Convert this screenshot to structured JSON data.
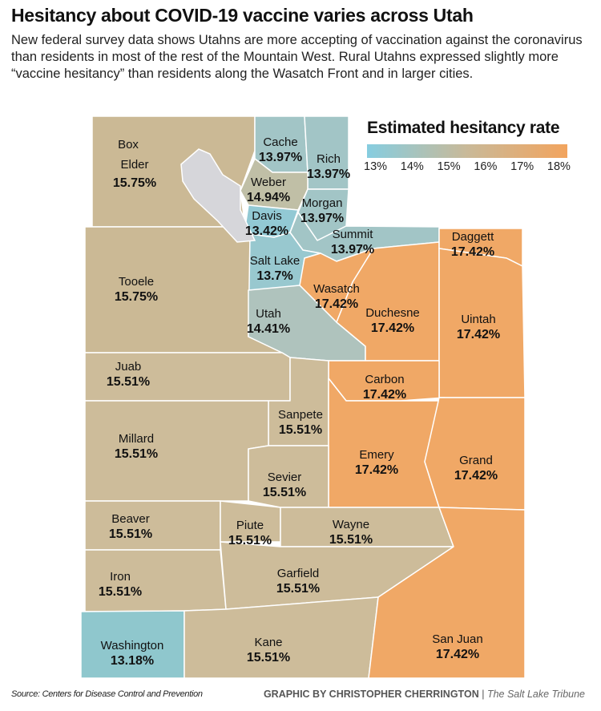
{
  "title": "Hesitancy about COVID-19 vaccine varies across Utah",
  "subtitle": "New federal survey data shows Utahns are more accepting of vaccination against the coronavirus than residents in most of the rest of the Mountain West. Rural Utahns expressed slightly more “vaccine hesitancy” than residents along the Wasatch Front and in larger cities.",
  "legend": {
    "title": "Estimated hesitancy rate",
    "ticks": [
      "13%",
      "14%",
      "15%",
      "16%",
      "17%",
      "18%"
    ],
    "range": [
      13,
      18
    ],
    "color_low": "#86cde0",
    "color_mid": "#c9b998",
    "color_high": "#f2a45e"
  },
  "colors": {
    "lake": "#d6d6da",
    "outline": "#ffffff"
  },
  "counties": [
    {
      "name": "Box Elder",
      "rate": "15.75%",
      "value": 15.75,
      "color": "#cbb995"
    },
    {
      "name": "Cache",
      "rate": "13.97%",
      "value": 13.97,
      "color": "#a2c5c6"
    },
    {
      "name": "Rich",
      "rate": "13.97%",
      "value": 13.97,
      "color": "#a2c5c6"
    },
    {
      "name": "Weber",
      "rate": "14.94%",
      "value": 14.94,
      "color": "#c0bfa6"
    },
    {
      "name": "Morgan",
      "rate": "13.97%",
      "value": 13.97,
      "color": "#a2c5c6"
    },
    {
      "name": "Davis",
      "rate": "13.42%",
      "value": 13.42,
      "color": "#92c9d4"
    },
    {
      "name": "Summit",
      "rate": "13.97%",
      "value": 13.97,
      "color": "#a2c5c6"
    },
    {
      "name": "Salt Lake",
      "rate": "13.7%",
      "value": 13.7,
      "color": "#98c8cf"
    },
    {
      "name": "Tooele",
      "rate": "15.75%",
      "value": 15.75,
      "color": "#cbb995"
    },
    {
      "name": "Wasatch",
      "rate": "17.42%",
      "value": 17.42,
      "color": "#f0a866"
    },
    {
      "name": "Utah",
      "rate": "14.41%",
      "value": 14.41,
      "color": "#afc3bd"
    },
    {
      "name": "Duchesne",
      "rate": "17.42%",
      "value": 17.42,
      "color": "#f0a866"
    },
    {
      "name": "Daggett",
      "rate": "17.42%",
      "value": 17.42,
      "color": "#f0a866"
    },
    {
      "name": "Uintah",
      "rate": "17.42%",
      "value": 17.42,
      "color": "#f0a866"
    },
    {
      "name": "Juab",
      "rate": "15.51%",
      "value": 15.51,
      "color": "#cdbc9a"
    },
    {
      "name": "Carbon",
      "rate": "17.42%",
      "value": 17.42,
      "color": "#f0a866"
    },
    {
      "name": "Sanpete",
      "rate": "15.51%",
      "value": 15.51,
      "color": "#cdbc9a"
    },
    {
      "name": "Millard",
      "rate": "15.51%",
      "value": 15.51,
      "color": "#cdbc9a"
    },
    {
      "name": "Emery",
      "rate": "17.42%",
      "value": 17.42,
      "color": "#f0a866"
    },
    {
      "name": "Grand",
      "rate": "17.42%",
      "value": 17.42,
      "color": "#f0a866"
    },
    {
      "name": "Sevier",
      "rate": "15.51%",
      "value": 15.51,
      "color": "#cdbc9a"
    },
    {
      "name": "Beaver",
      "rate": "15.51%",
      "value": 15.51,
      "color": "#cdbc9a"
    },
    {
      "name": "Piute",
      "rate": "15.51%",
      "value": 15.51,
      "color": "#cdbc9a"
    },
    {
      "name": "Wayne",
      "rate": "15.51%",
      "value": 15.51,
      "color": "#cdbc9a"
    },
    {
      "name": "Iron",
      "rate": "15.51%",
      "value": 15.51,
      "color": "#cdbc9a"
    },
    {
      "name": "Garfield",
      "rate": "15.51%",
      "value": 15.51,
      "color": "#cdbc9a"
    },
    {
      "name": "Washington",
      "rate": "13.18%",
      "value": 13.18,
      "color": "#8fc7cd"
    },
    {
      "name": "Kane",
      "rate": "15.51%",
      "value": 15.51,
      "color": "#cdbc9a"
    },
    {
      "name": "San Juan",
      "rate": "17.42%",
      "value": 17.42,
      "color": "#f0a866"
    }
  ],
  "footer": {
    "source": "Source: Centers for Disease Control and Prevention",
    "credit": "GRAPHIC BY CHRISTOPHER CHERRINGTON",
    "separator": "|",
    "publication": "The Salt Lake Tribune"
  }
}
